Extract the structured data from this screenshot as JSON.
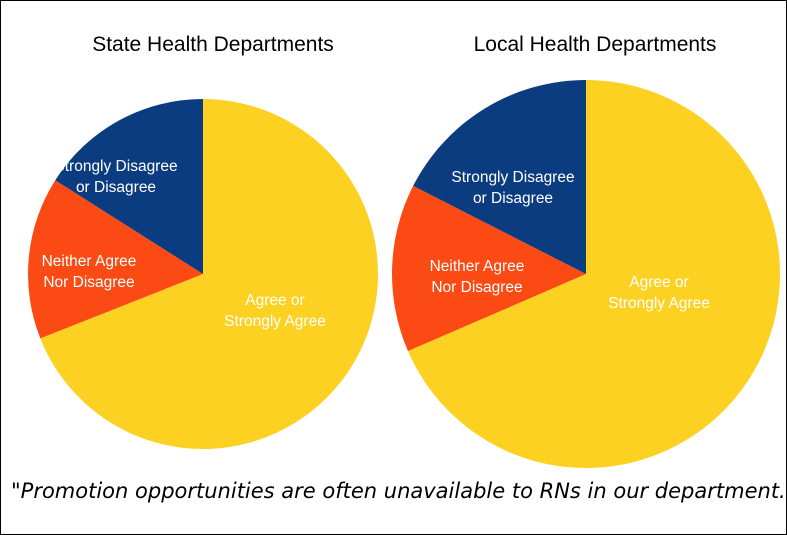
{
  "caption": "\"Promotion opportunities are often unavailable to RNs in our department.\"",
  "colors": {
    "agree": "#FCD121",
    "neither": "#FB4A14",
    "disagree": "#0B3C80"
  },
  "chart_data": [
    {
      "type": "pie",
      "title": "State Health Departments",
      "slices": [
        {
          "label": "Agree or Strongly Agree",
          "lines": [
            "Agree or",
            "Strongly Agree"
          ],
          "value": 69,
          "color": "#FCD121"
        },
        {
          "label": "Neither Agree Nor Disagree",
          "lines": [
            "Neither Agree",
            "Nor Disagree"
          ],
          "value": 15,
          "color": "#FB4A14"
        },
        {
          "label": "Strongly Disagree or Disagree",
          "lines": [
            "Strongly Disagree",
            "or Disagree"
          ],
          "value": 16,
          "color": "#0B3C80"
        }
      ]
    },
    {
      "type": "pie",
      "title": "Local Health Departments",
      "slices": [
        {
          "label": "Agree or Strongly Agree",
          "lines": [
            "Agree or",
            "Strongly Agree"
          ],
          "value": 68.5,
          "color": "#FCD121"
        },
        {
          "label": "Neither Agree Nor Disagree",
          "lines": [
            "Neither Agree",
            "Nor Disagree"
          ],
          "value": 14,
          "color": "#FB4A14"
        },
        {
          "label": "Strongly Disagree or Disagree",
          "lines": [
            "Strongly Disagree",
            "or Disagree"
          ],
          "value": 17.5,
          "color": "#0B3C80"
        }
      ]
    }
  ]
}
